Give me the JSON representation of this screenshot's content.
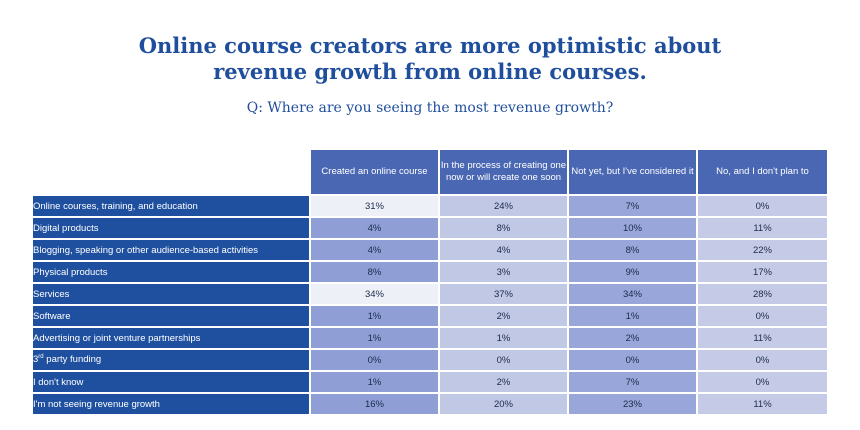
{
  "title_line1": "Online course creators are more optimistic about",
  "title_line2": "revenue growth from online courses.",
  "subtitle": "Q: Where are you seeing the most revenue growth?",
  "chart_data": {
    "type": "table",
    "columns": [
      "Created an online course",
      "In the process of creating one now or will create one soon",
      "Not yet, but I've considered it",
      "No, and I don't plan to"
    ],
    "rows": [
      {
        "label": "Online courses, training, and education",
        "values": [
          "31%",
          "24%",
          "7%",
          "0%"
        ]
      },
      {
        "label": "Digital products",
        "values": [
          "4%",
          "8%",
          "10%",
          "11%"
        ]
      },
      {
        "label": "Blogging, speaking or other audience-based activities",
        "values": [
          "4%",
          "4%",
          "8%",
          "22%"
        ]
      },
      {
        "label": "Physical products",
        "values": [
          "8%",
          "3%",
          "9%",
          "17%"
        ]
      },
      {
        "label": "Services",
        "values": [
          "34%",
          "37%",
          "34%",
          "28%"
        ]
      },
      {
        "label": "Software",
        "values": [
          "1%",
          "2%",
          "1%",
          "0%"
        ]
      },
      {
        "label": "Advertising or joint venture partnerships",
        "values": [
          "1%",
          "1%",
          "2%",
          "11%"
        ]
      },
      {
        "label": "3rd party funding",
        "values": [
          "0%",
          "0%",
          "0%",
          "0%"
        ]
      },
      {
        "label": "I don't know",
        "values": [
          "1%",
          "2%",
          "7%",
          "0%"
        ]
      },
      {
        "label": "I'm not seeing revenue growth",
        "values": [
          "16%",
          "20%",
          "23%",
          "11%"
        ]
      }
    ],
    "highlighted_rows": [
      "Online courses, training, and education",
      "Services"
    ],
    "colors": {
      "row_header": "#1f50a0",
      "column_header": "#4a67b3",
      "highlight_cell": "#eef0f7"
    }
  }
}
